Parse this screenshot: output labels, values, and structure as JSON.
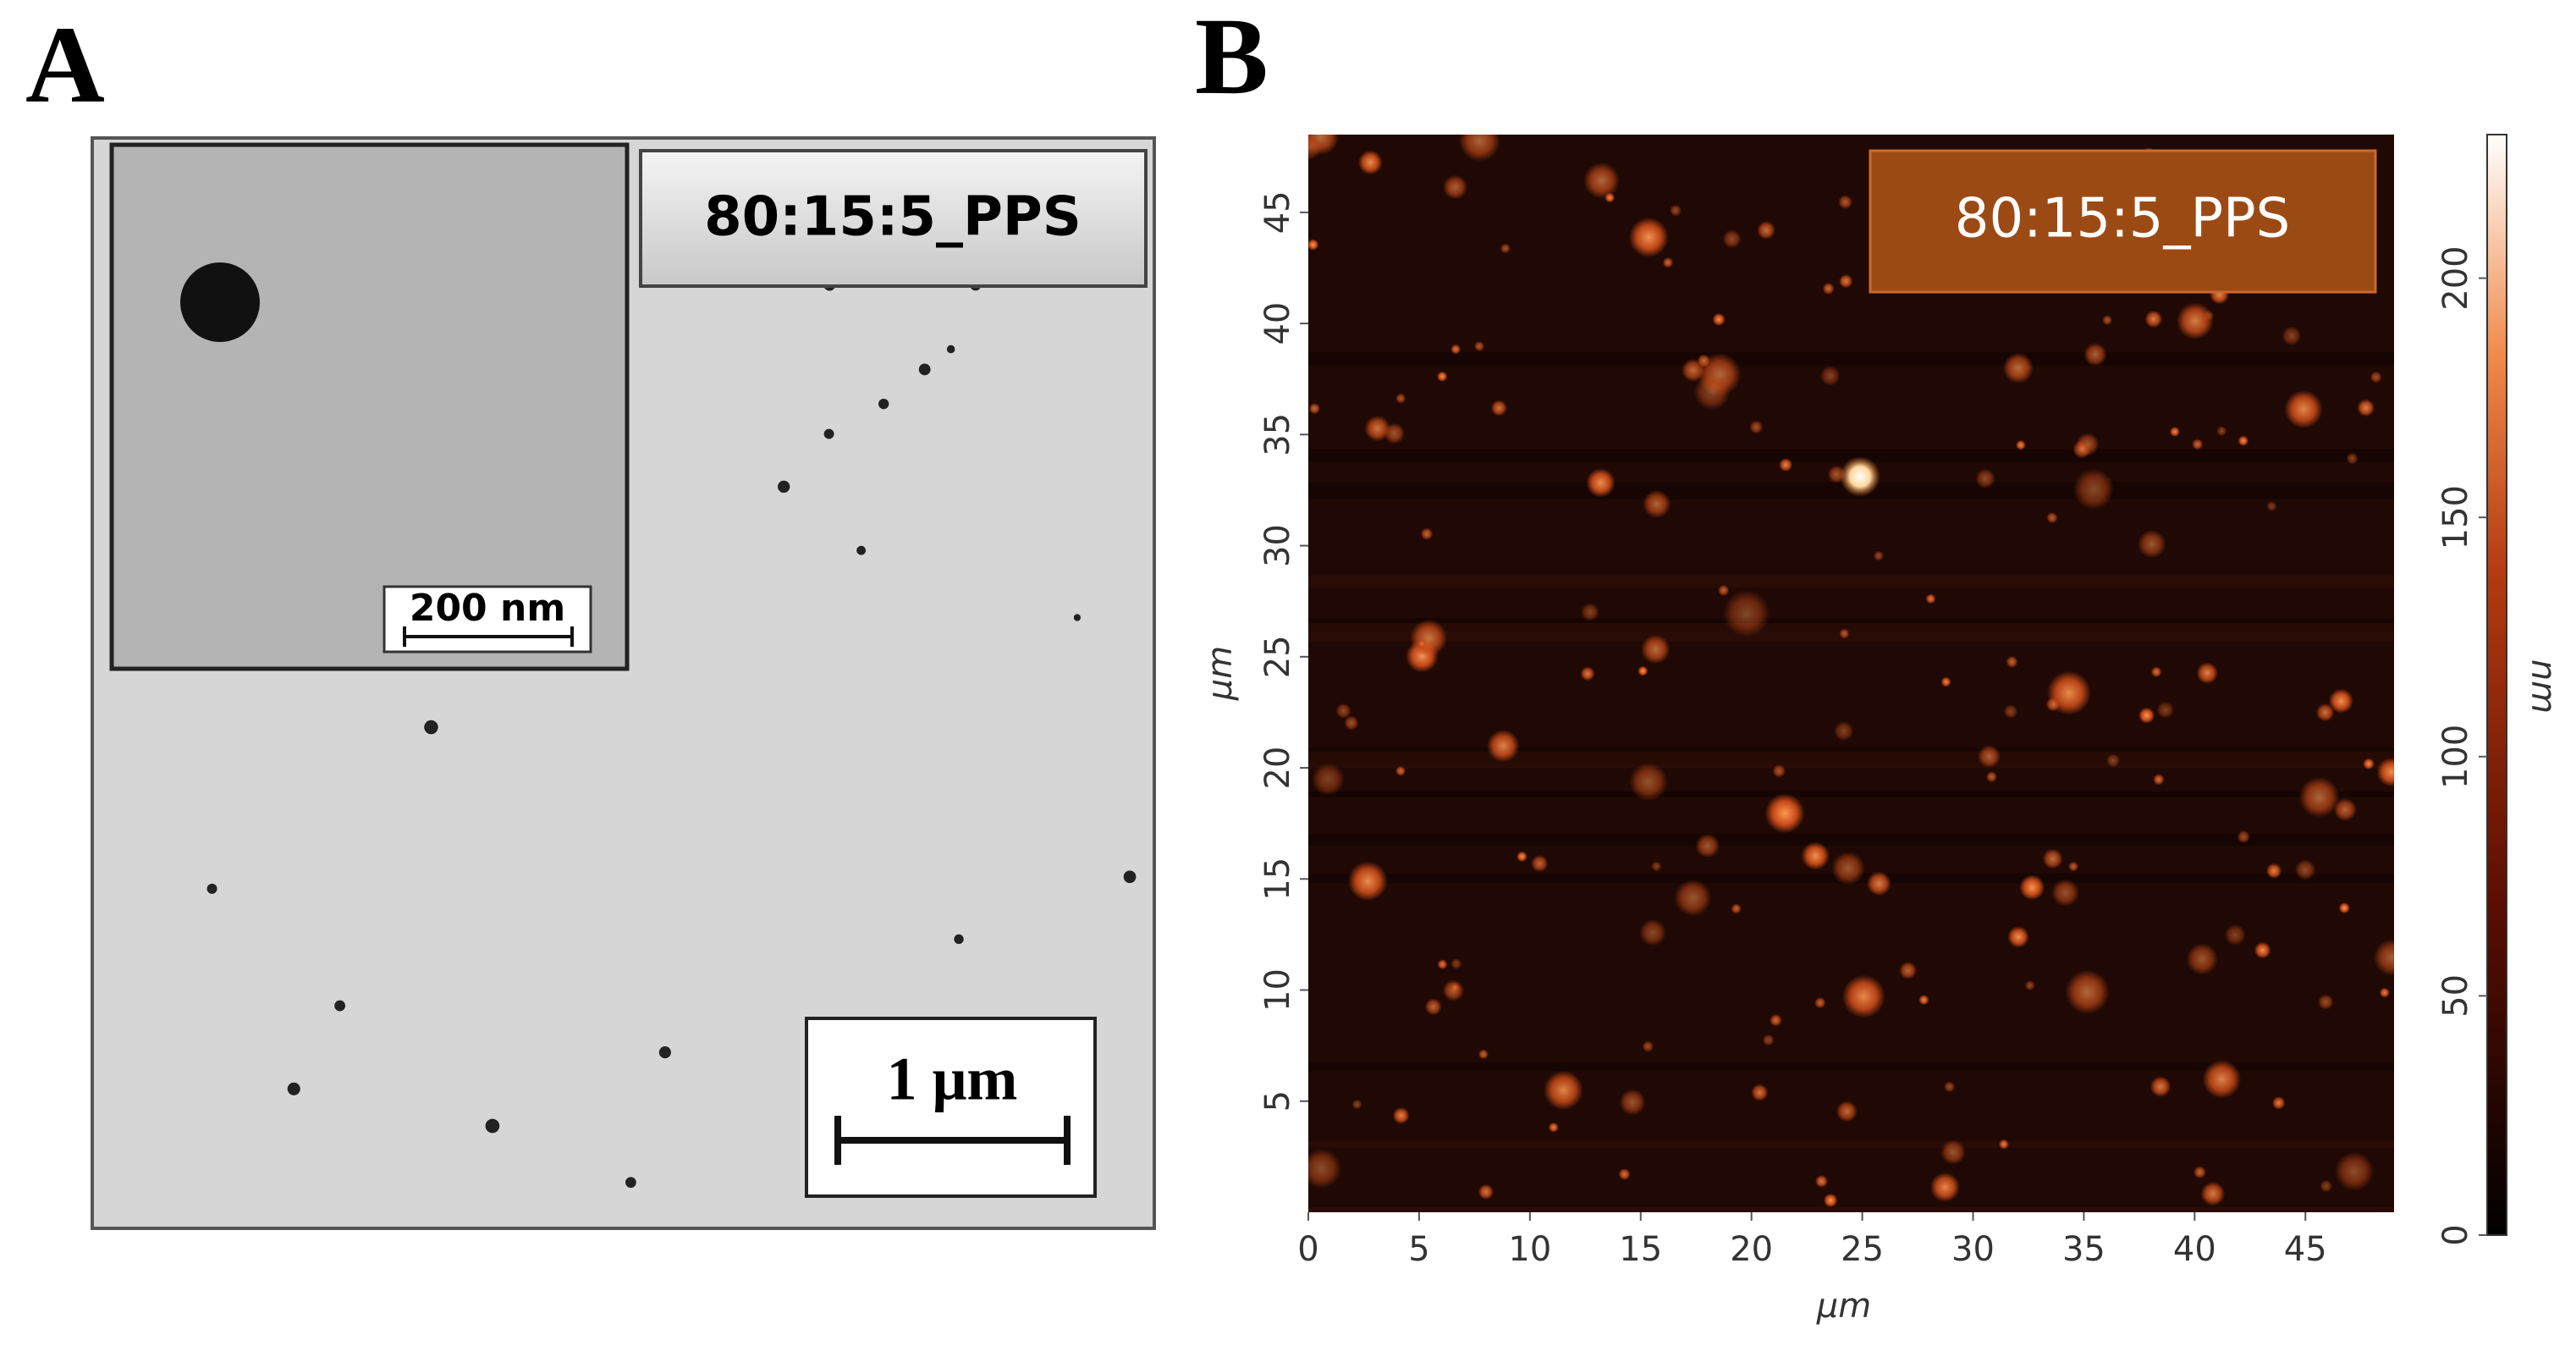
{
  "panels": [
    {
      "label": "A",
      "sample_label": "80:15:5_PPS",
      "inset_scale_bar": "200 nm",
      "scale_bar": "1 μm"
    },
    {
      "label": "B",
      "sample_label": "80:15:5_PPS",
      "x_axis_label": "μm",
      "y_axis_label": "μm",
      "xlim": [
        0,
        49
      ],
      "ylim": [
        0,
        48.5
      ],
      "xticks": [
        0,
        5,
        10,
        15,
        20,
        25,
        30,
        35,
        40,
        45
      ],
      "yticks": [
        5,
        10,
        15,
        20,
        25,
        30,
        35,
        40,
        45
      ],
      "colorbar": {
        "label": "nm",
        "lim": [
          0,
          230
        ],
        "ticks": [
          0,
          50,
          100,
          150,
          200
        ]
      }
    }
  ]
}
